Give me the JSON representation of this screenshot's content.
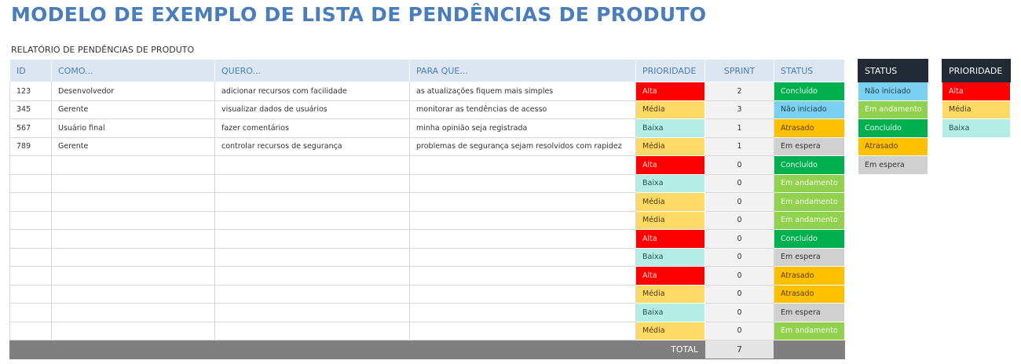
{
  "header": {
    "title": "MODELO DE EXEMPLO DE LISTA DE PENDÊNCIAS DE PRODUTO",
    "subtitle": "RELATÓRIO DE PENDÊNCIAS DE PRODUTO"
  },
  "table": {
    "columns": {
      "id": "ID",
      "como": "COMO...",
      "quero": "QUERO...",
      "para_que": "PARA QUE...",
      "prioridade": "PRIORIDADE",
      "sprint": "SPRINT",
      "status": "STATUS"
    },
    "rows": [
      {
        "id": "123",
        "como": "Desenvolvedor",
        "quero": "adicionar recursos com facilidade",
        "para_que": "as atualizações fiquem mais simples",
        "prioridade": "Alta",
        "sprint": 2,
        "status": "Concluído"
      },
      {
        "id": "345",
        "como": "Gerente",
        "quero": "visualizar dados de usuários",
        "para_que": "monitorar as tendências de acesso",
        "prioridade": "Média",
        "sprint": 3,
        "status": "Não iniciado"
      },
      {
        "id": "567",
        "como": "Usuário final",
        "quero": "fazer comentários",
        "para_que": "minha opinião seja registrada",
        "prioridade": "Baixa",
        "sprint": 1,
        "status": "Atrasado"
      },
      {
        "id": "789",
        "como": "Gerente",
        "quero": "controlar recursos de segurança",
        "para_que": "problemas de segurança sejam resolvidos com rapidez",
        "prioridade": "Média",
        "sprint": 1,
        "status": "Em espera"
      },
      {
        "prioridade": "Alta",
        "sprint": 0,
        "status": "Concluído"
      },
      {
        "prioridade": "Baixa",
        "sprint": 0,
        "status": "Em andamento"
      },
      {
        "prioridade": "Média",
        "sprint": 0,
        "status": "Em andamento"
      },
      {
        "prioridade": "Média",
        "sprint": 0,
        "status": "Em andamento"
      },
      {
        "prioridade": "Alta",
        "sprint": 0,
        "status": "Concluído"
      },
      {
        "prioridade": "Baixa",
        "sprint": 0,
        "status": "Em espera"
      },
      {
        "prioridade": "Alta",
        "sprint": 0,
        "status": "Atrasado"
      },
      {
        "prioridade": "Média",
        "sprint": 0,
        "status": "Atrasado"
      },
      {
        "prioridade": "Baixa",
        "sprint": 0,
        "status": "Em espera"
      },
      {
        "prioridade": "Média",
        "sprint": 0,
        "status": "Em andamento"
      }
    ],
    "total": {
      "label": "TOTAL",
      "value": 7
    }
  },
  "legends": {
    "status": {
      "title": "STATUS",
      "items": [
        {
          "label": "Não iniciado",
          "color": "#7ad0f0",
          "text_color": "#1f3a4a"
        },
        {
          "label": "Em andamento",
          "color": "#92d050",
          "text_color": "#f4fbe8"
        },
        {
          "label": "Concluído",
          "color": "#00b050",
          "text_color": "#e6f7ea"
        },
        {
          "label": "Atrasado",
          "color": "#ffc000",
          "text_color": "#5a3c00"
        },
        {
          "label": "Em espera",
          "color": "#d0d0d0",
          "text_color": "#333333"
        }
      ]
    },
    "prioridade": {
      "title": "PRIORIDADE",
      "items": [
        {
          "label": "Alta",
          "color": "#ff0000",
          "text_color": "#fde0d8"
        },
        {
          "label": "Média",
          "color": "#ffd966",
          "text_color": "#4a3c10"
        },
        {
          "label": "Baixa",
          "color": "#b3ede6",
          "text_color": "#24504b"
        }
      ]
    }
  }
}
